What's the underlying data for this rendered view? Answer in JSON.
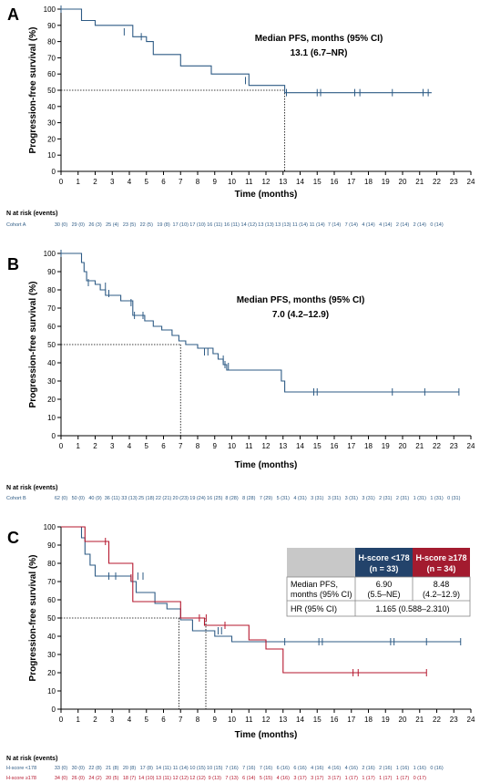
{
  "panels": [
    {
      "letter": "A",
      "median_title": "Median PFS, months (95% CI)",
      "median_value": "13.1 (6.7–NR)",
      "risk_header": "N at risk (events)",
      "risk_rows": [
        {
          "label": "Cohort A",
          "color": "#2e5b85",
          "values": [
            "30 (0)",
            "29 (0)",
            "26 (3)",
            "25 (4)",
            "23 (5)",
            "22 (5)",
            "19 (8)",
            "17 (10)",
            "17 (10)",
            "16 (11)",
            "16 (11)",
            "14 (12)",
            "13 (13)",
            "13 (13)",
            "11 (14)",
            "11 (14)",
            "7 (14)",
            "7 (14)",
            "4 (14)",
            "4 (14)",
            "2 (14)",
            "2 (14)",
            "0 (14)"
          ]
        }
      ]
    },
    {
      "letter": "B",
      "median_title": "Median PFS, months (95% CI)",
      "median_value": "7.0 (4.2–12.9)",
      "risk_header": "N at risk (events)",
      "risk_rows": [
        {
          "label": "Cohort B",
          "color": "#2e5b85",
          "values": [
            "62 (0)",
            "50 (0)",
            "40 (9)",
            "36 (11)",
            "33 (13)",
            "25 (18)",
            "22 (21)",
            "20 (23)",
            "19 (24)",
            "16 (25)",
            "8 (28)",
            "8 (28)",
            "7 (29)",
            "5 (31)",
            "4 (31)",
            "3 (31)",
            "3 (31)",
            "3 (31)",
            "3 (31)",
            "2 (31)",
            "2 (31)",
            "1 (31)",
            "1 (31)",
            "0 (31)"
          ]
        }
      ]
    },
    {
      "letter": "C",
      "risk_header": "N at risk (events)",
      "risk_rows": [
        {
          "label": "H-score <178",
          "color": "#2e5b85",
          "values": [
            "33 (0)",
            "30 (0)",
            "22 (8)",
            "21 (8)",
            "20 (8)",
            "17 (8)",
            "14 (11)",
            "11 (14)",
            "10 (15)",
            "10 (15)",
            "7 (16)",
            "7 (16)",
            "7 (16)",
            "6 (16)",
            "6 (16)",
            "4 (16)",
            "4 (16)",
            "4 (16)",
            "2 (16)",
            "2 (16)",
            "1 (16)",
            "1 (16)",
            "0 (16)"
          ]
        },
        {
          "label": "H-score ≥178",
          "color": "#b5172e",
          "values": [
            "34 (0)",
            "26 (0)",
            "24 (2)",
            "20 (5)",
            "18 (7)",
            "14 (10)",
            "13 (11)",
            "12 (12)",
            "12 (12)",
            "9 (13)",
            "7 (13)",
            "6 (14)",
            "5 (15)",
            "4 (16)",
            "3 (17)",
            "3 (17)",
            "3 (17)",
            "1 (17)",
            "1 (17)",
            "1 (17)",
            "1 (17)",
            "0 (17)"
          ]
        }
      ],
      "table": {
        "col1_line1": "H-score <178",
        "col1_line2": "(n = 33)",
        "col2_line1": "H-score ≥178",
        "col2_line2": "(n = 34)",
        "row1_label_line1": "Median PFS,",
        "row1_label_line2": "months (95% CI)",
        "row1_c1_line1": "6.90",
        "row1_c1_line2": "(5.5–NE)",
        "row1_c2_line1": "8.48",
        "row1_c2_line2": "(4.2–12.9)",
        "row2_label": "HR (95% CI)",
        "row2_value": "1.165 (0.588–2.310)",
        "col1_color": "#23436b",
        "col2_color": "#a31b2f",
        "header_gray": "#c8c8c8"
      }
    }
  ],
  "chart_data": [
    {
      "type": "line",
      "step": true,
      "title": "",
      "xlabel": "Time (months)",
      "ylabel": "Progression-free survival (%)",
      "xlim": [
        0,
        24
      ],
      "ylim": [
        0,
        100
      ],
      "xticks": [
        0,
        1,
        2,
        3,
        4,
        5,
        6,
        7,
        8,
        9,
        10,
        11,
        12,
        13,
        14,
        15,
        16,
        17,
        18,
        19,
        20,
        21,
        22,
        23,
        24
      ],
      "yticks": [
        0,
        10,
        20,
        30,
        40,
        50,
        60,
        70,
        80,
        90,
        100
      ],
      "median_x": 13.1,
      "series": [
        {
          "name": "Cohort A",
          "color": "#2e5b85",
          "x": [
            0,
            1.2,
            1.2,
            2.0,
            2.0,
            4.2,
            4.2,
            5.0,
            5.0,
            5.4,
            5.4,
            7.0,
            7.0,
            8.8,
            8.8,
            11.0,
            11.0,
            13.1,
            13.1,
            21.7
          ],
          "y": [
            100,
            100,
            93,
            93,
            90,
            90,
            83,
            83,
            80,
            80,
            72,
            72,
            65,
            65,
            60,
            60,
            53,
            53,
            48.5,
            48.5
          ],
          "censor_x": [
            0,
            3.7,
            4.7,
            10.8,
            13.2,
            15.0,
            15.2,
            17.2,
            17.5,
            19.4,
            21.2,
            21.5
          ],
          "censor_y": [
            100,
            86,
            83,
            56,
            48.5,
            48.5,
            48.5,
            48.5,
            48.5,
            48.5,
            48.5,
            48.5
          ]
        }
      ]
    },
    {
      "type": "line",
      "step": true,
      "title": "",
      "xlabel": "Time (months)",
      "ylabel": "Progression-free survival (%)",
      "xlim": [
        0,
        24
      ],
      "ylim": [
        0,
        100
      ],
      "xticks": [
        0,
        1,
        2,
        3,
        4,
        5,
        6,
        7,
        8,
        9,
        10,
        11,
        12,
        13,
        14,
        15,
        16,
        17,
        18,
        19,
        20,
        21,
        22,
        23,
        24
      ],
      "yticks": [
        0,
        10,
        20,
        30,
        40,
        50,
        60,
        70,
        80,
        90,
        100
      ],
      "median_x": 7.0,
      "series": [
        {
          "name": "Cohort B",
          "color": "#2e5b85",
          "x": [
            0,
            1.2,
            1.2,
            1.35,
            1.35,
            1.5,
            1.5,
            2.0,
            2.0,
            2.3,
            2.3,
            2.6,
            2.6,
            3.5,
            3.5,
            4.2,
            4.2,
            4.9,
            4.9,
            5.4,
            5.4,
            5.9,
            5.9,
            6.5,
            6.5,
            6.9,
            6.9,
            7.3,
            7.3,
            8.0,
            8.0,
            8.9,
            8.9,
            9.2,
            9.2,
            9.5,
            9.5,
            9.7,
            9.7,
            12.9,
            12.9,
            13.1,
            13.1,
            23.3
          ],
          "y": [
            100,
            100,
            95,
            95,
            90,
            90,
            85,
            85,
            83,
            83,
            80,
            80,
            77,
            77,
            74,
            74,
            66,
            66,
            63,
            63,
            60,
            60,
            58,
            58,
            55,
            55,
            52,
            52,
            50,
            50,
            48,
            48,
            45,
            45,
            42,
            42,
            39,
            39,
            36,
            36,
            30,
            30,
            24,
            24
          ],
          "censor_x": [
            0,
            1.6,
            2.6,
            2.8,
            4.1,
            4.3,
            4.8,
            8.4,
            8.6,
            9.5,
            9.6,
            9.8,
            14.8,
            15.0,
            19.4,
            21.3,
            23.3
          ],
          "censor_y": [
            100,
            84,
            82,
            78,
            73,
            66,
            66,
            46,
            46,
            42,
            39,
            38,
            24,
            24,
            24,
            24,
            24
          ]
        }
      ]
    },
    {
      "type": "line",
      "step": true,
      "title": "",
      "xlabel": "Time (months)",
      "ylabel": "Progression-free survival (%)",
      "xlim": [
        0,
        24
      ],
      "ylim": [
        0,
        100
      ],
      "xticks": [
        0,
        1,
        2,
        3,
        4,
        5,
        6,
        7,
        8,
        9,
        10,
        11,
        12,
        13,
        14,
        15,
        16,
        17,
        18,
        19,
        20,
        21,
        22,
        23,
        24
      ],
      "yticks": [
        0,
        10,
        20,
        30,
        40,
        50,
        60,
        70,
        80,
        90,
        100
      ],
      "median_x": [
        6.9,
        8.48
      ],
      "series": [
        {
          "name": "H-score <178",
          "color": "#2e5b85",
          "x": [
            0,
            1.2,
            1.2,
            1.4,
            1.4,
            1.7,
            1.7,
            2.0,
            2.0,
            4.1,
            4.1,
            4.4,
            4.4,
            5.5,
            5.5,
            6.2,
            6.2,
            7.0,
            7.0,
            7.7,
            7.7,
            9.0,
            9.0,
            10.0,
            10.0,
            23.4
          ],
          "y": [
            100,
            100,
            94,
            94,
            85,
            85,
            79,
            79,
            73,
            73,
            70,
            70,
            64,
            64,
            58,
            58,
            55,
            55,
            49,
            49,
            43,
            43,
            40,
            40,
            37,
            37
          ],
          "censor_x": [
            2.8,
            3.2,
            4.5,
            4.8,
            9.2,
            9.4,
            13.1,
            15.1,
            15.3,
            19.3,
            19.5,
            21.4,
            23.4
          ],
          "censor_y": [
            73,
            73,
            73,
            73,
            43,
            43,
            37,
            37,
            37,
            37,
            37,
            37,
            37
          ]
        }
      ],
      "series_2": [
        {
          "name": "H-score ≥178",
          "color": "#b5172e",
          "x": [
            0,
            1.4,
            1.4,
            2.8,
            2.8,
            4.2,
            4.2,
            7.0,
            7.0,
            8.4,
            8.4,
            11.0,
            11.0,
            12.0,
            12.0,
            13.0,
            13.0,
            21.4
          ],
          "y": [
            100,
            100,
            92,
            92,
            80,
            80,
            59,
            59,
            50,
            50,
            46,
            46,
            38,
            38,
            33,
            33,
            20,
            20
          ],
          "censor_x": [
            2.6,
            4.1,
            8.1,
            8.5,
            9.6,
            17.1,
            17.4,
            21.4
          ],
          "censor_y": [
            92,
            72,
            50,
            50,
            46,
            20,
            20,
            20
          ]
        }
      ]
    }
  ]
}
